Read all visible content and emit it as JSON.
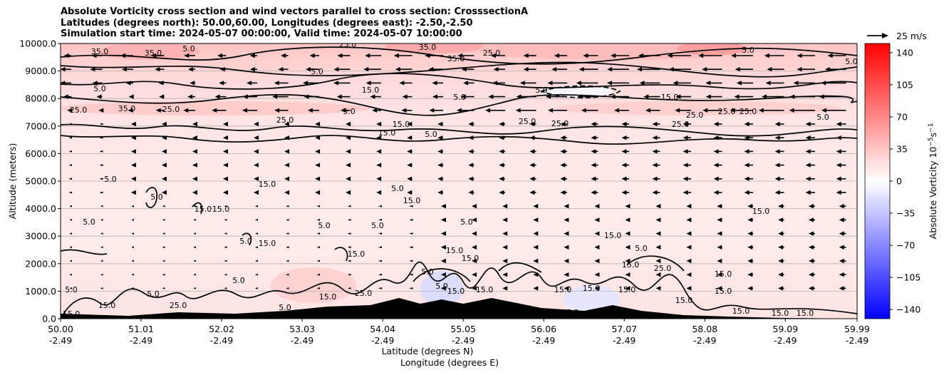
{
  "title": {
    "line1": "Absolute Vorticity cross section and wind vectors parallel to cross section: CrosssectionA",
    "line2": "Latitudes (degrees north): 50.00,60.00, Longitudes (degrees east): -2.50,-2.50",
    "line3": "Simulation start time: 2024-05-07 00:00:00, Valid time: 2024-05-07 10:00:00"
  },
  "chart_data": {
    "type": "heatmap",
    "xlabel_lat": "Latitude (degrees N)",
    "xlabel_lon": "Longitude (degrees E)",
    "ylabel": "Altitude (meters)",
    "ylim": [
      0,
      10000
    ],
    "y_ticks": [
      "0.0",
      "1000.0",
      "2000.0",
      "3000.0",
      "4000.0",
      "5000.0",
      "6000.0",
      "7000.0",
      "8000.0",
      "9000.0",
      "10000.0"
    ],
    "y_values": [
      0,
      1000,
      2000,
      3000,
      4000,
      5000,
      6000,
      7000,
      8000,
      9000,
      10000
    ],
    "x_ticks_lat": [
      "50.00",
      "51.01",
      "52.02",
      "53.03",
      "54.04",
      "55.05",
      "56.06",
      "57.07",
      "58.08",
      "59.09",
      "59.99"
    ],
    "x_ticks_lon": [
      "-2.49",
      "-2.49",
      "-2.49",
      "-2.49",
      "-2.49",
      "-2.49",
      "-2.49",
      "-2.49",
      "-2.49",
      "-2.49",
      "-2.49"
    ],
    "x_values": [
      50.0,
      51.01,
      52.02,
      53.03,
      54.04,
      55.05,
      56.06,
      57.07,
      58.08,
      59.09,
      59.99
    ],
    "xlim": [
      50.0,
      59.99
    ],
    "grid": "horizontal",
    "colorbar": {
      "label": "Absolute Vorticity 10",
      "label_exp": "−5",
      "label_unit": "s",
      "label_unit_exp": "−1",
      "ticks": [
        "140",
        "105",
        "70",
        "35",
        "0",
        "−35",
        "−70",
        "−105",
        "−140"
      ],
      "tick_values": [
        140,
        105,
        70,
        35,
        0,
        -35,
        -70,
        -105,
        -140
      ],
      "range": [
        -150,
        150
      ],
      "colors": {
        "min": "#0000ff",
        "mid": "#ffffff",
        "max": "#ff0000"
      }
    },
    "quiver_key": {
      "label": "25 m/s"
    },
    "contour_labels": [
      "5.0",
      "15.0",
      "25.0",
      "35.0"
    ]
  }
}
